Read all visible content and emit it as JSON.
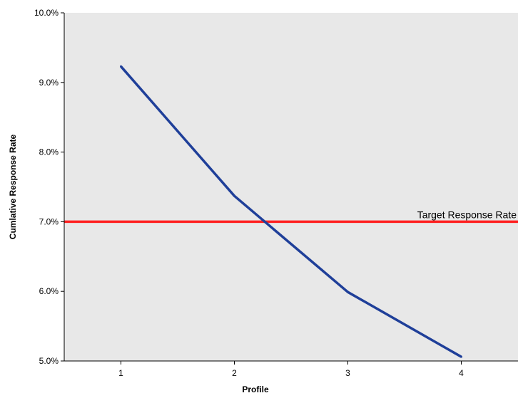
{
  "chart_data": {
    "type": "line",
    "title": "",
    "xlabel": "Profile",
    "ylabel": "Cumlative Response Rate",
    "x": [
      1,
      2,
      3,
      4
    ],
    "x_tick_labels": [
      "1",
      "2",
      "3",
      "4"
    ],
    "xlim": [
      0.5,
      4.5
    ],
    "y_ticks": [
      5.0,
      6.0,
      7.0,
      8.0,
      9.0,
      10.0
    ],
    "y_tick_labels": [
      "5.0%",
      "6.0%",
      "7.0%",
      "8.0%",
      "9.0%",
      "10.0%"
    ],
    "ylim": [
      5.0,
      10.0
    ],
    "series": [
      {
        "values": [
          9.23,
          7.37,
          5.99,
          5.06
        ],
        "color": "#1f3f99"
      }
    ],
    "reference_line": {
      "label": "Target Response Rate",
      "y": 7.0,
      "color": "#ff2020"
    },
    "plot_background": "#e8e8e8",
    "grid": false
  }
}
